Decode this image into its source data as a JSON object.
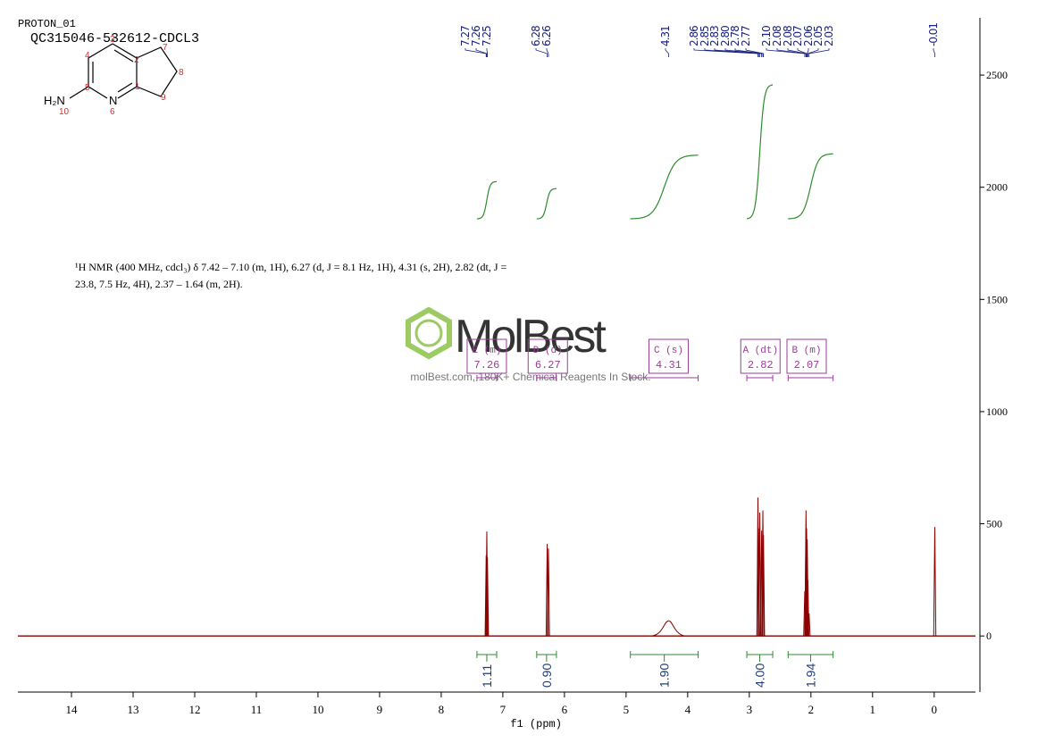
{
  "header": {
    "program": "PROTON_01",
    "sample": "QC315046-532612-CDCL3"
  },
  "structure": {
    "atoms": [
      "4",
      "3",
      "2",
      "7",
      "8",
      "5",
      "1",
      "9",
      "N",
      "6",
      "H₂N",
      "10"
    ]
  },
  "description": [
    "¹H NMR (400 MHz, cdcl₃) δ 7.42 – 7.10 (m, 1H), 6.27 (d, J = 8.1 Hz, 1H), 4.31 (s, 2H), 2.82 (dt, J =",
    "23.8, 7.5 Hz, 4H), 2.37 – 1.64 (m, 2H)."
  ],
  "watermark": {
    "logo": "MolBest",
    "tagline": "molBest.com, 180K+ Chemical Reagents In Stock."
  },
  "chart_data": {
    "type": "spectrum",
    "x_label": "f1 (ppm)",
    "xlim": [
      14.87,
      -0.67
    ],
    "xticks": [
      14,
      13,
      12,
      11,
      10,
      9,
      8,
      7,
      6,
      5,
      4,
      3,
      2,
      1,
      0
    ],
    "ylim": [
      -250,
      2755
    ],
    "yticks": [
      0,
      500,
      1000,
      1500,
      2000,
      2500
    ],
    "color": "#8b0000",
    "peaks": {
      "x": [
        7.27,
        7.26,
        7.25,
        6.28,
        6.26,
        4.31,
        2.86,
        2.85,
        2.83,
        2.8,
        2.78,
        2.77,
        2.1,
        2.08,
        2.08,
        2.07,
        2.06,
        2.05,
        2.03,
        -0.01
      ],
      "values": [
        360,
        466,
        350,
        410,
        390,
        68,
        617,
        480,
        550,
        470,
        560,
        450,
        200,
        480,
        560,
        480,
        430,
        250,
        100,
        486
      ],
      "labels": [
        "7.27",
        "7.26",
        "7.25",
        "6.28",
        "6.26",
        "4.31",
        "2.86",
        "2.85",
        "2.83",
        "2.80",
        "2.78",
        "2.77",
        "2.10",
        "2.08",
        "2.08",
        "2.07",
        "2.06",
        "2.05",
        "2.03",
        "-0.01"
      ],
      "label_color": "#1a237e"
    },
    "integrals": {
      "ranges": [
        [
          7.42,
          7.1
        ],
        [
          6.45,
          6.13
        ],
        [
          4.93,
          3.83
        ],
        [
          3.04,
          2.62
        ],
        [
          2.37,
          1.64
        ]
      ],
      "values": [
        1.11,
        0.9,
        1.9,
        4.0,
        1.94
      ],
      "value_labels": [
        "1.11",
        "0.90",
        "1.90",
        "4.00",
        "1.94"
      ],
      "color": "#2e8b2e",
      "label_color": "#1f3c78"
    },
    "multiplets": {
      "labels": [
        "E (m)",
        "D (d)",
        "C (s)",
        "A (dt)",
        "B (m)"
      ],
      "shifts": [
        7.26,
        6.27,
        4.31,
        2.82,
        2.07
      ],
      "color": "#9b3c9b"
    }
  }
}
